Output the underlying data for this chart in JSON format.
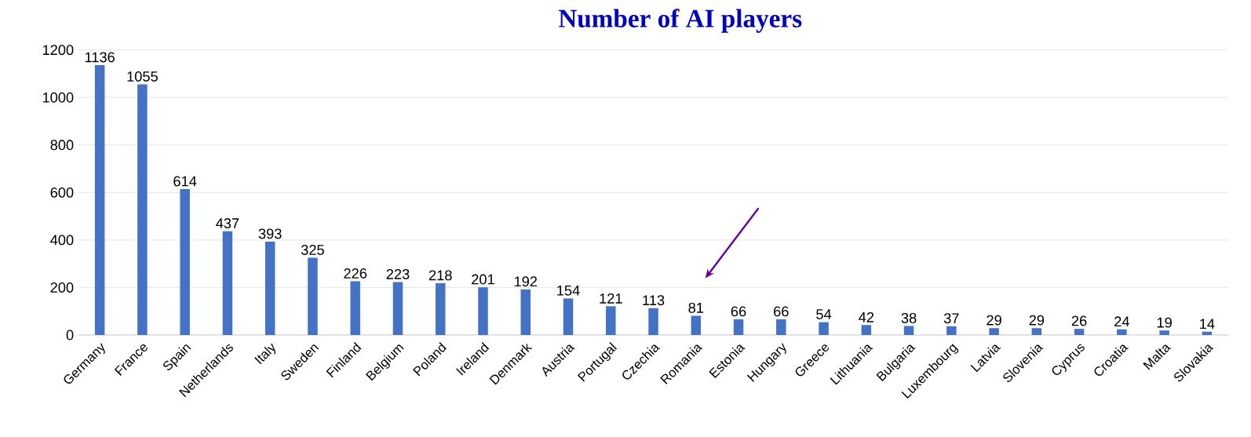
{
  "chart_data": {
    "type": "bar",
    "title": "Number of AI players",
    "categories": [
      "Germany",
      "France",
      "Spain",
      "Netherlands",
      "Italy",
      "Sweden",
      "Finland",
      "Belgium",
      "Poland",
      "Ireland",
      "Denmark",
      "Austria",
      "Portugal",
      "Czechia",
      "Romania",
      "Estonia",
      "Hungary",
      "Greece",
      "Lithuania",
      "Bulgaria",
      "Luxembourg",
      "Latvia",
      "Slovenia",
      "Cyprus",
      "Croatia",
      "Malta",
      "Slovakia"
    ],
    "values": [
      1136,
      1055,
      614,
      437,
      393,
      325,
      226,
      223,
      218,
      201,
      192,
      154,
      121,
      113,
      81,
      66,
      66,
      54,
      42,
      38,
      37,
      29,
      29,
      26,
      24,
      19,
      14
    ],
    "color": "#4472c4",
    "ylim": [
      0,
      1200
    ],
    "yticks": [
      0,
      200,
      400,
      600,
      800,
      1000,
      1200
    ],
    "grid": "y",
    "data_labels": true
  }
}
